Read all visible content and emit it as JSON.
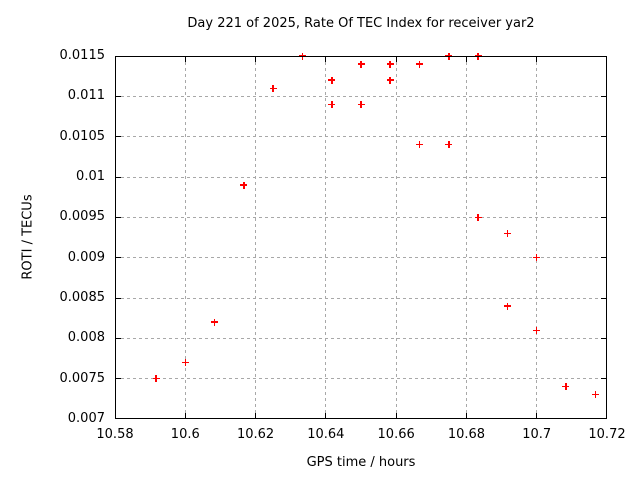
{
  "chart_data": {
    "type": "scatter",
    "title": "Day 221 of 2025, Rate Of TEC Index for receiver yar2",
    "xlabel": "GPS time / hours",
    "ylabel": "ROTI / TECUs",
    "xlim": [
      10.58,
      10.72
    ],
    "ylim": [
      0.007,
      0.0115
    ],
    "x_ticks": [
      10.58,
      10.6,
      10.62,
      10.64,
      10.66,
      10.68,
      10.7,
      10.72
    ],
    "x_tick_labels": [
      "10.58",
      "10.6",
      "10.62",
      "10.64",
      "10.66",
      "10.68",
      "10.7",
      "10.72"
    ],
    "y_ticks": [
      0.007,
      0.0075,
      0.008,
      0.0085,
      0.009,
      0.0095,
      0.01,
      0.0105,
      0.011,
      0.0115
    ],
    "y_tick_labels": [
      "0.007",
      "0.0075",
      "0.008",
      "0.0085",
      "0.009",
      "0.0095",
      "0.01",
      "0.0105",
      "0.011",
      "0.0115"
    ],
    "grid": true,
    "legend_position": "none",
    "marker": "plus",
    "colors": {
      "marker": "#ff0000",
      "grid": "#a8a8a8",
      "axis": "#000000",
      "background": "#ffffff"
    },
    "series": [
      {
        "name": "ROTI",
        "points": [
          [
            10.5917,
            0.0075
          ],
          [
            10.6,
            0.0077
          ],
          [
            10.6083,
            0.0082
          ],
          [
            10.6167,
            0.0099
          ],
          [
            10.625,
            0.0111
          ],
          [
            10.6333,
            0.0115
          ],
          [
            10.6417,
            0.0109
          ],
          [
            10.6417,
            0.0112
          ],
          [
            10.65,
            0.0109
          ],
          [
            10.65,
            0.0114
          ],
          [
            10.6583,
            0.0112
          ],
          [
            10.6583,
            0.0114
          ],
          [
            10.6667,
            0.0104
          ],
          [
            10.6667,
            0.0114
          ],
          [
            10.675,
            0.0104
          ],
          [
            10.675,
            0.0115
          ],
          [
            10.6833,
            0.0095
          ],
          [
            10.6833,
            0.0115
          ],
          [
            10.6917,
            0.0084
          ],
          [
            10.6917,
            0.0093
          ],
          [
            10.7,
            0.0081
          ],
          [
            10.7,
            0.009
          ],
          [
            10.7083,
            0.0074
          ],
          [
            10.7167,
            0.0073
          ]
        ]
      }
    ]
  }
}
